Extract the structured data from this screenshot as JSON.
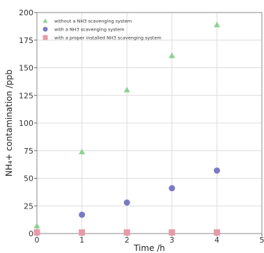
{
  "chart_data": {
    "type": "scatter",
    "title": "",
    "xlabel": "Time /h",
    "ylabel": "NH₄+ contamination /ppb",
    "xlim": [
      0,
      5
    ],
    "ylim": [
      0,
      200
    ],
    "x_ticks": [
      "0",
      "1",
      "2",
      "3",
      "4",
      "5"
    ],
    "y_ticks": [
      "0",
      "25",
      "50",
      "75",
      "100",
      "125",
      "150",
      "175",
      "200"
    ],
    "grid": true,
    "legend_position": "top-left",
    "series": [
      {
        "name": "without a NH3 scavenging system",
        "marker": "triangle",
        "color": "#8fd18f",
        "x": [
          0,
          1,
          2,
          3,
          4
        ],
        "y": [
          7,
          74,
          130,
          161,
          189
        ]
      },
      {
        "name": "with a NH3 scavenging system",
        "marker": "circle",
        "color": "#7a7ac4",
        "x": [
          1,
          2,
          3,
          4
        ],
        "y": [
          17,
          28,
          41,
          57
        ]
      },
      {
        "name": "with a proper installed NH3 scavenging system",
        "marker": "square",
        "color": "#e89aa8",
        "x": [
          0,
          1,
          2,
          3,
          4
        ],
        "y": [
          1,
          1,
          1,
          1,
          1
        ]
      }
    ]
  }
}
